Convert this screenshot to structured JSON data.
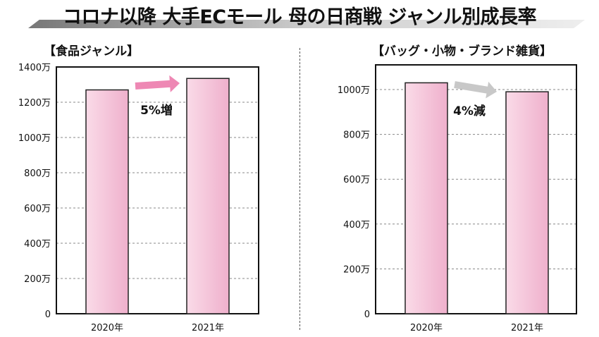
{
  "title": "コロナ以降 大手ECモール 母の日商戦 ジャンル別成長率",
  "chart_data": [
    {
      "type": "bar",
      "title": "【食品ジャンル】",
      "categories": [
        "2020年",
        "2021年"
      ],
      "values": [
        1270,
        1335
      ],
      "unit": "万",
      "ylim": [
        0,
        1400
      ],
      "yticks": [
        0,
        200,
        400,
        600,
        800,
        1000,
        1200,
        1400
      ],
      "ytick_labels": [
        "0",
        "200万",
        "400万",
        "600万",
        "800万",
        "1000万",
        "1200万",
        "1400万"
      ],
      "annotation": "5%増",
      "arrow_color": "#ee88b4",
      "grid": true
    },
    {
      "type": "bar",
      "title": "【バッグ・小物・ブランド雑貨】",
      "categories": [
        "2020年",
        "2021年"
      ],
      "values": [
        1030,
        990
      ],
      "unit": "万",
      "ylim": [
        0,
        1110
      ],
      "yticks": [
        0,
        200,
        400,
        600,
        800,
        1000
      ],
      "ytick_labels": [
        "0",
        "200万",
        "400万",
        "600万",
        "800万",
        "1000万"
      ],
      "annotation": "4%減",
      "arrow_color": "#c8c8c8",
      "grid": true
    }
  ]
}
